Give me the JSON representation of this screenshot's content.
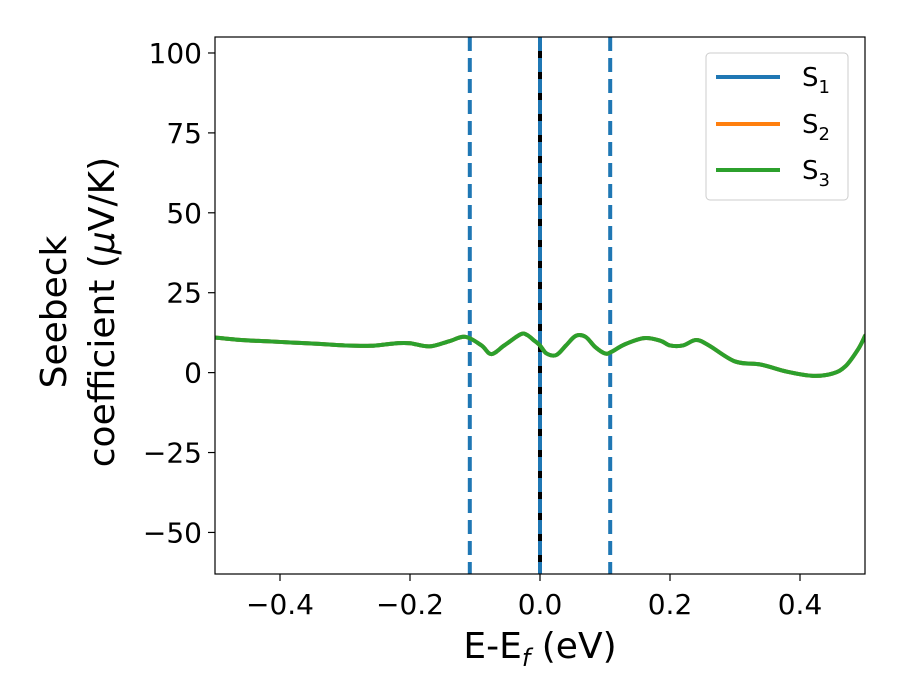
{
  "chart_data": {
    "type": "line",
    "xlabel": {
      "main": "E-E",
      "sub": "f",
      "unit": " (eV)"
    },
    "ylabel": {
      "line1": "Seebeck",
      "line2_prefix": "coefficient  (",
      "mu": "μ",
      "line2_suffix": "V/K)"
    },
    "xlim": [
      -0.5,
      0.5
    ],
    "ylim": [
      -63,
      105
    ],
    "xticks": [
      -0.4,
      -0.2,
      0.0,
      0.2,
      0.4
    ],
    "xtick_labels": [
      "−0.4",
      "−0.2",
      "0.0",
      "0.2",
      "0.4"
    ],
    "yticks": [
      -50,
      -25,
      0,
      25,
      50,
      75,
      100
    ],
    "ytick_labels": [
      "−50",
      "−25",
      "0",
      "25",
      "50",
      "75",
      "100"
    ],
    "legend_position": "top-right",
    "legend": [
      {
        "base": "S",
        "sub": "1",
        "color": "#1f77b4"
      },
      {
        "base": "S",
        "sub": "2",
        "color": "#ff7f0e"
      },
      {
        "base": "S",
        "sub": "3",
        "color": "#2ca02c"
      }
    ],
    "vlines": [
      {
        "x": -0.108,
        "style": "dashed",
        "color": "#1f77b4"
      },
      {
        "x": 0.0,
        "style": "solid",
        "color": "#000000"
      },
      {
        "x": 0.0,
        "style": "dashed",
        "color": "#1f77b4"
      },
      {
        "x": 0.108,
        "style": "dashed",
        "color": "#1f77b4"
      }
    ],
    "x": [
      -0.5,
      -0.46,
      -0.42,
      -0.38,
      -0.34,
      -0.3,
      -0.26,
      -0.22,
      -0.2,
      -0.17,
      -0.14,
      -0.115,
      -0.09,
      -0.075,
      -0.055,
      -0.03,
      -0.02,
      -0.01,
      0.0,
      0.01,
      0.025,
      0.04,
      0.055,
      0.07,
      0.085,
      0.1,
      0.11,
      0.13,
      0.16,
      0.185,
      0.2,
      0.22,
      0.24,
      0.26,
      0.3,
      0.34,
      0.38,
      0.42,
      0.45,
      0.47,
      0.49,
      0.5
    ],
    "series": [
      {
        "name": "S1",
        "color": "#1f77b4",
        "values": [
          11.0,
          10.2,
          9.8,
          9.4,
          9.0,
          8.5,
          8.4,
          9.2,
          9.2,
          8.2,
          9.8,
          11.2,
          8.5,
          5.8,
          8.5,
          12.0,
          11.8,
          10.2,
          8.5,
          6.0,
          5.5,
          8.5,
          11.5,
          11.2,
          8.0,
          6.0,
          6.5,
          8.8,
          10.8,
          10.0,
          8.5,
          8.5,
          10.2,
          8.5,
          3.5,
          2.5,
          0.3,
          -1.0,
          -0.3,
          2.0,
          7.5,
          11.5
        ]
      },
      {
        "name": "S2",
        "color": "#ff7f0e",
        "values": [
          11.0,
          10.2,
          9.8,
          9.4,
          9.0,
          8.5,
          8.4,
          9.2,
          9.2,
          8.2,
          9.8,
          11.2,
          8.5,
          5.8,
          8.5,
          12.0,
          11.8,
          10.2,
          8.5,
          6.0,
          5.5,
          8.5,
          11.5,
          11.2,
          8.0,
          6.0,
          6.5,
          8.8,
          10.8,
          10.0,
          8.5,
          8.5,
          10.2,
          8.5,
          3.5,
          2.5,
          0.3,
          -1.0,
          -0.3,
          2.0,
          7.5,
          11.5
        ]
      },
      {
        "name": "S3",
        "color": "#2ca02c",
        "values": [
          11.0,
          10.2,
          9.8,
          9.4,
          9.0,
          8.5,
          8.4,
          9.2,
          9.2,
          8.2,
          9.8,
          11.2,
          8.5,
          5.8,
          8.5,
          12.0,
          11.8,
          10.2,
          8.5,
          6.0,
          5.5,
          8.5,
          11.5,
          11.2,
          8.0,
          6.0,
          6.5,
          8.8,
          10.8,
          10.0,
          8.5,
          8.5,
          10.2,
          8.5,
          3.5,
          2.5,
          0.3,
          -1.0,
          -0.3,
          2.0,
          7.5,
          11.5
        ]
      }
    ]
  }
}
